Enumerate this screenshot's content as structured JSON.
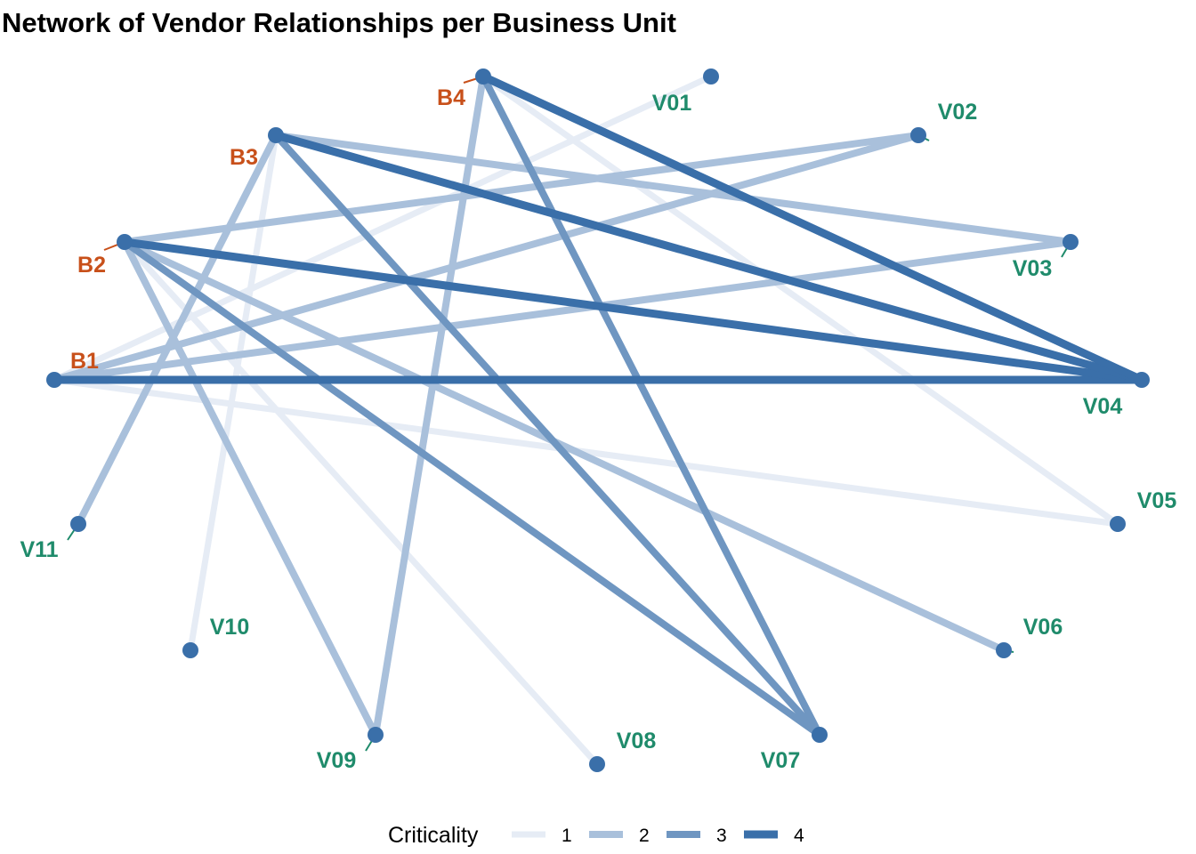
{
  "chart_data": {
    "type": "network",
    "title": "Network of Vendor Relationships per Business Unit",
    "legend": {
      "title": "Criticality",
      "position": "bottom",
      "levels": [
        "1",
        "2",
        "3",
        "4"
      ]
    },
    "colors": {
      "edge_levels": [
        "#e6ecf5",
        "#a9c0db",
        "#6f96c1",
        "#3a6fa9"
      ],
      "node_fill": "#3a6fa9",
      "business_unit_label": "#c8501a",
      "vendor_label": "#1f8b6b"
    },
    "business_units": [
      "B1",
      "B2",
      "B3",
      "B4"
    ],
    "vendors": [
      "V01",
      "V02",
      "V03",
      "V04",
      "V05",
      "V06",
      "V07",
      "V08",
      "V09",
      "V10",
      "V11"
    ],
    "edges": [
      {
        "from": "B1",
        "to": "V04",
        "criticality": 4
      },
      {
        "from": "B1",
        "to": "V01",
        "criticality": 1
      },
      {
        "from": "B1",
        "to": "V02",
        "criticality": 2
      },
      {
        "from": "B1",
        "to": "V03",
        "criticality": 2
      },
      {
        "from": "B1",
        "to": "V05",
        "criticality": 1
      },
      {
        "from": "B2",
        "to": "V04",
        "criticality": 4
      },
      {
        "from": "B2",
        "to": "V02",
        "criticality": 2
      },
      {
        "from": "B2",
        "to": "V07",
        "criticality": 3
      },
      {
        "from": "B2",
        "to": "V06",
        "criticality": 2
      },
      {
        "from": "B2",
        "to": "V09",
        "criticality": 2
      },
      {
        "from": "B2",
        "to": "V08",
        "criticality": 1
      },
      {
        "from": "B3",
        "to": "V04",
        "criticality": 4
      },
      {
        "from": "B3",
        "to": "V03",
        "criticality": 2
      },
      {
        "from": "B3",
        "to": "V07",
        "criticality": 3
      },
      {
        "from": "B3",
        "to": "V11",
        "criticality": 2
      },
      {
        "from": "B3",
        "to": "V10",
        "criticality": 1
      },
      {
        "from": "B4",
        "to": "V04",
        "criticality": 4
      },
      {
        "from": "B4",
        "to": "V07",
        "criticality": 3
      },
      {
        "from": "B4",
        "to": "V09",
        "criticality": 2
      },
      {
        "from": "B4",
        "to": "V05",
        "criticality": 1
      }
    ]
  }
}
